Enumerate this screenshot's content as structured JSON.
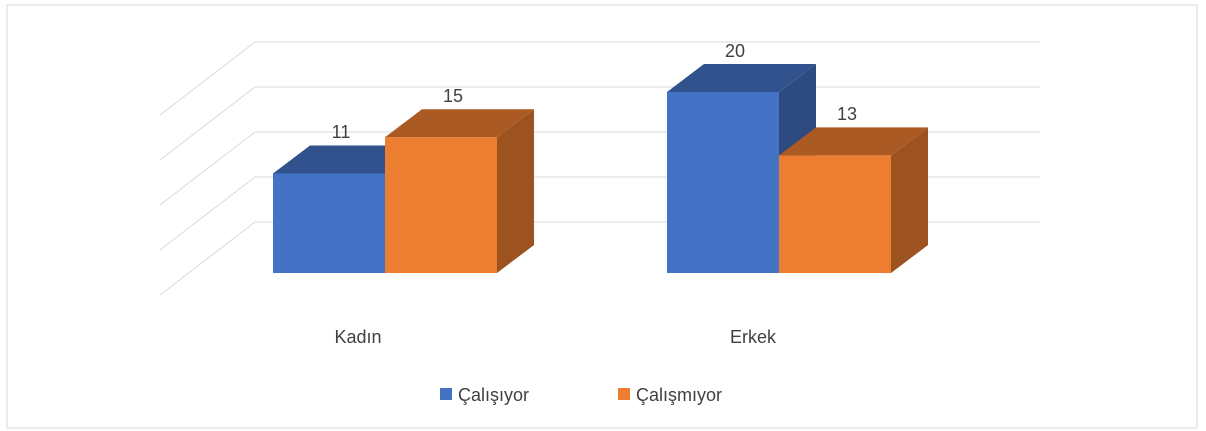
{
  "chart_data": {
    "type": "bar3d",
    "categories": [
      "Kadın",
      "Erkek"
    ],
    "series": [
      {
        "name": "Çalışıyor",
        "color": "#4472c4",
        "values": [
          11,
          20
        ]
      },
      {
        "name": "Çalışmıyor",
        "color": "#ed7d31",
        "values": [
          15,
          13
        ]
      }
    ],
    "ylim": [
      0,
      20
    ],
    "yticks": [
      0,
      5,
      10,
      15,
      20
    ],
    "grid": true,
    "legend": "bottom"
  }
}
